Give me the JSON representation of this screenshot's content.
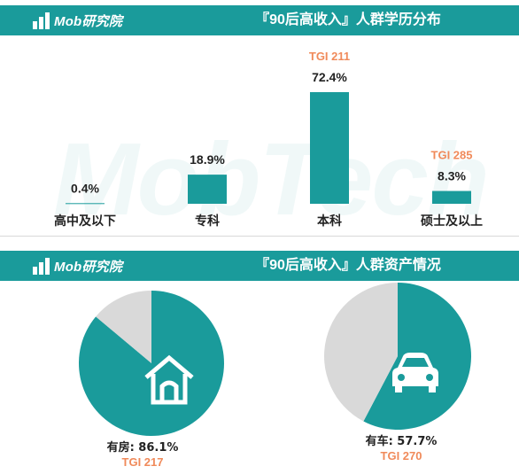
{
  "logo": {
    "text": "Mob研究院"
  },
  "watermark": "MobTech",
  "section_education": {
    "title": "『90后高收入』人群学历分布"
  },
  "section_assets": {
    "title": "『90后高收入』人群资产情况"
  },
  "colors": {
    "teal": "#1a9b9b",
    "orange": "#f08a5a",
    "gray": "#d9d9d9",
    "text": "#222222"
  },
  "chart_data": [
    {
      "type": "bar",
      "title": "『90后高收入』人群学历分布",
      "categories": [
        "高中及以下",
        "专科",
        "本科",
        "硕士及以上"
      ],
      "values": [
        0.4,
        18.9,
        72.4,
        8.3
      ],
      "value_labels": [
        "0.4%",
        "18.9%",
        "72.4%",
        "8.3%"
      ],
      "tgi_labels": [
        "",
        "",
        "TGI 211",
        "TGI 285"
      ],
      "ylim": [
        0,
        100
      ],
      "grid": false
    },
    {
      "type": "pie",
      "title": "『90后高收入』人群资产情况",
      "pies": [
        {
          "icon": "house-icon",
          "label": "有房:",
          "value": 86.1,
          "value_label": "86.1%",
          "tgi": "TGI 217"
        },
        {
          "icon": "car-icon",
          "label": "有车:",
          "value": 57.7,
          "value_label": "57.7%",
          "tgi": "TGI 270"
        }
      ]
    }
  ]
}
